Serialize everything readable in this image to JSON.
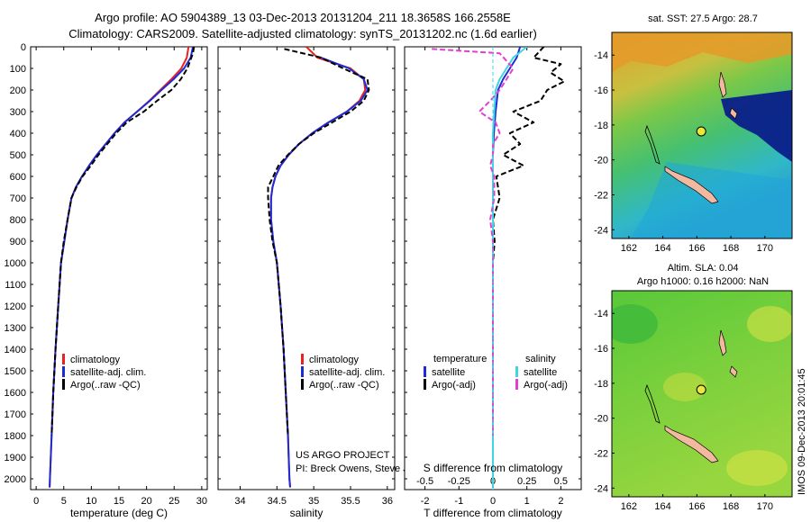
{
  "title_line1": "Argo profile: AO 5904389_13 03-Dec-2013 20131204_211 18.3658S 166.2558E",
  "title_line2": "Climatology: CARS2009. Satellite-adjusted climatology: synTS_20131202.nc (1.6d earlier)",
  "colors": {
    "climatology": "#e8231f",
    "satellite": "#1b2bd6",
    "argo": "#000000",
    "satellite_sal": "#3fd6e0",
    "argo_sal": "#e23fd2"
  },
  "legend": {
    "climatology": "climatology",
    "satellite": "satellite-adj. clim.",
    "argo": "Argo(..raw -QC)",
    "diff_temperature": "temperature",
    "diff_salinity": "salinity",
    "diff_satellite": "satellite",
    "diff_argo": "Argo(-adj)"
  },
  "credits": {
    "project": "US ARGO PROJECT",
    "pi": "PI: Breck Owens, Steve Jayne, and P E Robbi"
  },
  "imos_stamp": "IMOS 09-Dec-2013 20:01:45",
  "chart_data": [
    {
      "type": "line",
      "panel": "temperature",
      "xlabel": "temperature (deg C)",
      "ylabel": "",
      "xlim": [
        -1,
        31
      ],
      "ylim": [
        2050,
        0
      ],
      "xticks": [
        0,
        5,
        10,
        15,
        20,
        25,
        30
      ],
      "yticks": [
        0,
        100,
        200,
        300,
        400,
        500,
        600,
        700,
        800,
        900,
        1000,
        1100,
        1200,
        1300,
        1400,
        1500,
        1600,
        1700,
        1800,
        1900,
        2000
      ],
      "series": [
        {
          "name": "climatology",
          "color_key": "climatology",
          "dash": false,
          "points": [
            [
              27.6,
              0
            ],
            [
              27.3,
              50
            ],
            [
              26.3,
              100
            ],
            [
              24.5,
              150
            ],
            [
              22.5,
              200
            ],
            [
              20.5,
              250
            ],
            [
              18.3,
              300
            ],
            [
              16.0,
              350
            ],
            [
              14.2,
              400
            ],
            [
              12.6,
              450
            ],
            [
              11.0,
              500
            ],
            [
              9.6,
              550
            ],
            [
              8.3,
              600
            ],
            [
              7.2,
              650
            ],
            [
              6.4,
              700
            ],
            [
              5.7,
              800
            ],
            [
              5.1,
              900
            ],
            [
              4.5,
              1000
            ],
            [
              4.0,
              1200
            ],
            [
              3.5,
              1400
            ],
            [
              3.1,
              1600
            ],
            [
              2.8,
              1800
            ],
            [
              2.5,
              2000
            ],
            [
              2.45,
              2040
            ]
          ]
        },
        {
          "name": "satellite-adj. clim.",
          "color_key": "satellite",
          "dash": false,
          "points": [
            [
              28.4,
              0
            ],
            [
              28.0,
              50
            ],
            [
              26.8,
              100
            ],
            [
              24.9,
              150
            ],
            [
              22.7,
              200
            ],
            [
              20.6,
              250
            ],
            [
              18.3,
              300
            ],
            [
              16.0,
              350
            ],
            [
              14.2,
              400
            ],
            [
              12.6,
              450
            ],
            [
              11.0,
              500
            ],
            [
              9.6,
              550
            ],
            [
              8.3,
              600
            ],
            [
              7.2,
              650
            ],
            [
              6.4,
              700
            ],
            [
              5.7,
              800
            ],
            [
              5.1,
              900
            ],
            [
              4.5,
              1000
            ],
            [
              4.0,
              1200
            ],
            [
              3.5,
              1400
            ],
            [
              3.1,
              1600
            ],
            [
              2.8,
              1800
            ],
            [
              2.5,
              2000
            ],
            [
              2.45,
              2040
            ]
          ]
        },
        {
          "name": "Argo(..raw -QC)",
          "color_key": "argo",
          "dash": true,
          "points": [
            [
              28.6,
              0
            ],
            [
              28.4,
              30
            ],
            [
              27.4,
              100
            ],
            [
              26.2,
              150
            ],
            [
              24.5,
              200
            ],
            [
              21.9,
              250
            ],
            [
              19.5,
              300
            ],
            [
              16.4,
              350
            ],
            [
              14.5,
              400
            ],
            [
              12.9,
              450
            ],
            [
              11.3,
              500
            ],
            [
              9.9,
              550
            ],
            [
              8.4,
              600
            ],
            [
              7.3,
              650
            ],
            [
              6.4,
              700
            ],
            [
              5.7,
              800
            ],
            [
              5.0,
              900
            ],
            [
              4.5,
              1000
            ],
            [
              4.0,
              1200
            ],
            [
              3.5,
              1400
            ],
            [
              3.1,
              1600
            ],
            [
              2.8,
              1800
            ]
          ]
        }
      ]
    },
    {
      "type": "line",
      "panel": "salinity",
      "xlabel": "salinity",
      "ylabel": "",
      "xlim": [
        33.7,
        36.1
      ],
      "ylim": [
        2050,
        0
      ],
      "xticks": [
        34,
        34.5,
        35,
        35.5,
        36
      ],
      "series": [
        {
          "name": "climatology",
          "color_key": "climatology",
          "dash": false,
          "points": [
            [
              34.9,
              0
            ],
            [
              35.05,
              50
            ],
            [
              35.5,
              100
            ],
            [
              35.68,
              150
            ],
            [
              35.7,
              200
            ],
            [
              35.62,
              250
            ],
            [
              35.45,
              300
            ],
            [
              35.2,
              350
            ],
            [
              34.98,
              400
            ],
            [
              34.8,
              450
            ],
            [
              34.66,
              500
            ],
            [
              34.55,
              550
            ],
            [
              34.48,
              600
            ],
            [
              34.44,
              650
            ],
            [
              34.42,
              700
            ],
            [
              34.42,
              800
            ],
            [
              34.45,
              900
            ],
            [
              34.5,
              1000
            ],
            [
              34.55,
              1200
            ],
            [
              34.59,
              1400
            ],
            [
              34.62,
              1600
            ],
            [
              34.65,
              1800
            ],
            [
              34.67,
              2000
            ],
            [
              34.68,
              2040
            ]
          ]
        },
        {
          "name": "satellite-adj. clim.",
          "color_key": "satellite",
          "dash": false,
          "points": [
            [
              35.1,
              50
            ],
            [
              35.48,
              100
            ],
            [
              35.68,
              150
            ],
            [
              35.73,
              200
            ],
            [
              35.64,
              250
            ],
            [
              35.45,
              300
            ],
            [
              35.2,
              350
            ],
            [
              34.98,
              400
            ],
            [
              34.8,
              450
            ],
            [
              34.66,
              500
            ],
            [
              34.55,
              550
            ],
            [
              34.48,
              600
            ],
            [
              34.44,
              650
            ],
            [
              34.42,
              700
            ],
            [
              34.42,
              800
            ],
            [
              34.45,
              900
            ],
            [
              34.5,
              1000
            ],
            [
              34.55,
              1200
            ],
            [
              34.59,
              1400
            ],
            [
              34.62,
              1600
            ],
            [
              34.65,
              1800
            ],
            [
              34.67,
              2000
            ],
            [
              34.68,
              2040
            ]
          ]
        },
        {
          "name": "Argo(..raw -QC)",
          "color_key": "argo",
          "dash": true,
          "points": [
            [
              34.6,
              10
            ],
            [
              35.1,
              50
            ],
            [
              35.4,
              100
            ],
            [
              35.73,
              150
            ],
            [
              35.75,
              200
            ],
            [
              35.68,
              250
            ],
            [
              35.5,
              300
            ],
            [
              35.25,
              350
            ],
            [
              35.0,
              400
            ],
            [
              34.8,
              450
            ],
            [
              34.65,
              500
            ],
            [
              34.52,
              550
            ],
            [
              34.45,
              600
            ],
            [
              34.38,
              650
            ],
            [
              34.38,
              700
            ],
            [
              34.4,
              800
            ],
            [
              34.44,
              900
            ],
            [
              34.5,
              1000
            ],
            [
              34.55,
              1200
            ],
            [
              34.59,
              1400
            ],
            [
              34.62,
              1600
            ],
            [
              34.65,
              1800
            ]
          ]
        }
      ]
    },
    {
      "type": "line",
      "panel": "difference",
      "xlabel": "T difference from climatology",
      "top_label": "S difference from climatology",
      "ylabel": "",
      "xlim": [
        -2.6,
        2.6
      ],
      "ylim": [
        2050,
        0
      ],
      "xticks": [
        -2,
        -1,
        0,
        1,
        2
      ],
      "xtick_labels": [
        "-2",
        "-1",
        "0",
        "1",
        "2"
      ],
      "sticks": [
        -0.5,
        -0.25,
        0,
        0.25,
        0.5
      ],
      "stick_labels": [
        "-0.5",
        "-0.25",
        "0",
        "0.25",
        "0.5"
      ],
      "series": [
        {
          "name": "temperature satellite",
          "color_key": "satellite",
          "dash": false,
          "unit": "T",
          "points": [
            [
              0.8,
              0
            ],
            [
              0.7,
              50
            ],
            [
              0.5,
              100
            ],
            [
              0.3,
              150
            ],
            [
              0.15,
              200
            ],
            [
              0.08,
              300
            ],
            [
              0.03,
              400
            ],
            [
              0,
              500
            ],
            [
              0,
              2040
            ]
          ]
        },
        {
          "name": "temperature Argo(-adj)",
          "color_key": "argo",
          "dash": true,
          "unit": "T",
          "points": [
            [
              1.5,
              0
            ],
            [
              1.2,
              50
            ],
            [
              2.0,
              80
            ],
            [
              1.7,
              120
            ],
            [
              2.1,
              160
            ],
            [
              1.6,
              200
            ],
            [
              1.4,
              250
            ],
            [
              0.6,
              300
            ],
            [
              1.2,
              350
            ],
            [
              0.5,
              400
            ],
            [
              0.8,
              450
            ],
            [
              0.3,
              500
            ],
            [
              0.9,
              550
            ],
            [
              0.1,
              600
            ],
            [
              0.2,
              700
            ],
            [
              0,
              800
            ],
            [
              0.05,
              900
            ],
            [
              0,
              1000
            ],
            [
              0,
              1800
            ]
          ]
        },
        {
          "name": "salinity satellite",
          "color_key": "satellite_sal",
          "dash": false,
          "unit": "S",
          "points": [
            [
              0.25,
              0
            ],
            [
              0.15,
              50
            ],
            [
              0.1,
              100
            ],
            [
              0.05,
              150
            ],
            [
              0.02,
              200
            ],
            [
              0.01,
              300
            ],
            [
              0,
              400
            ],
            [
              0,
              2040
            ]
          ]
        },
        {
          "name": "salinity Argo(-adj)",
          "color_key": "argo_sal",
          "dash": true,
          "unit": "S",
          "points": [
            [
              -0.45,
              10
            ],
            [
              0.05,
              30
            ],
            [
              0.15,
              100
            ],
            [
              0.1,
              150
            ],
            [
              0.05,
              200
            ],
            [
              -0.02,
              250
            ],
            [
              -0.1,
              300
            ],
            [
              0.02,
              350
            ],
            [
              0.05,
              400
            ],
            [
              0,
              450
            ],
            [
              0,
              500
            ],
            [
              -0.02,
              550
            ],
            [
              0.01,
              600
            ],
            [
              0.01,
              700
            ],
            [
              -0.02,
              800
            ],
            [
              0,
              900
            ],
            [
              0,
              1000
            ],
            [
              0,
              1800
            ]
          ]
        }
      ]
    },
    {
      "type": "heatmap",
      "panel": "map_sst",
      "title": "sat. SST: 27.5 Argo: 28.7",
      "xlim": [
        161,
        171.6
      ],
      "ylim": [
        -24.5,
        -12.7
      ],
      "xticks": [
        162,
        164,
        166,
        168,
        170
      ],
      "yticks": [
        -14,
        -16,
        -18,
        -20,
        -22,
        -24
      ],
      "argo_position": [
        166.26,
        -18.37
      ]
    },
    {
      "type": "heatmap",
      "panel": "map_sla",
      "title_line1": "Altim. SLA: 0.04",
      "title_line2": "Argo h1000: 0.16 h2000: NaN",
      "xlim": [
        161,
        171.6
      ],
      "ylim": [
        -24.5,
        -12.7
      ],
      "xticks": [
        162,
        164,
        166,
        168,
        170
      ],
      "yticks": [
        -14,
        -16,
        -18,
        -20,
        -22,
        -24
      ],
      "argo_position": [
        166.26,
        -18.37
      ]
    }
  ]
}
